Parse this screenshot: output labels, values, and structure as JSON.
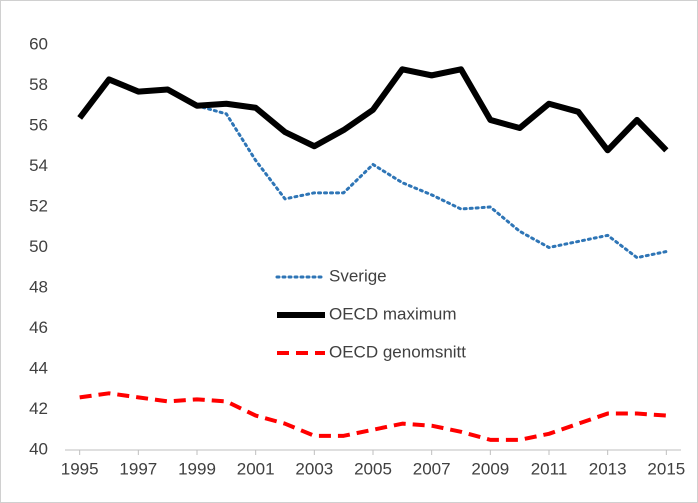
{
  "chart_data": {
    "type": "line",
    "x": [
      1995,
      1996,
      1997,
      1998,
      1999,
      2000,
      2001,
      2002,
      2003,
      2004,
      2005,
      2006,
      2007,
      2008,
      2009,
      2010,
      2011,
      2012,
      2013,
      2014,
      2015
    ],
    "xlim": [
      1994.5,
      2015.5
    ],
    "xticks": [
      1995,
      1997,
      1999,
      2001,
      2003,
      2005,
      2007,
      2009,
      2011,
      2013,
      2015
    ],
    "ylim": [
      40,
      60
    ],
    "yticks": [
      40,
      42,
      44,
      46,
      48,
      50,
      52,
      54,
      56,
      58,
      60
    ],
    "legend": "center",
    "series": [
      {
        "name": "Sverige",
        "color": "#2e75b6",
        "style": "dotted",
        "values": [
          null,
          null,
          null,
          null,
          57.0,
          56.6,
          54.3,
          52.4,
          52.7,
          52.7,
          54.1,
          53.2,
          52.6,
          51.9,
          52.0,
          50.8,
          50.0,
          50.3,
          50.6,
          49.5,
          49.8
        ]
      },
      {
        "name": "OECD maximum",
        "color": "#000000",
        "style": "solid",
        "values": [
          56.4,
          58.3,
          57.7,
          57.8,
          57.0,
          57.1,
          56.9,
          55.7,
          55.0,
          55.8,
          56.8,
          58.8,
          58.5,
          58.8,
          56.3,
          55.9,
          57.1,
          56.7,
          54.8,
          56.3,
          54.8
        ]
      },
      {
        "name": "OECD genomsnitt",
        "color": "#ff0000",
        "style": "dashed",
        "values": [
          42.6,
          42.8,
          42.6,
          42.4,
          42.5,
          42.4,
          41.7,
          41.3,
          40.7,
          40.7,
          41.0,
          41.3,
          41.2,
          40.9,
          40.5,
          40.5,
          40.8,
          41.3,
          41.8,
          41.8,
          41.7
        ]
      }
    ]
  }
}
